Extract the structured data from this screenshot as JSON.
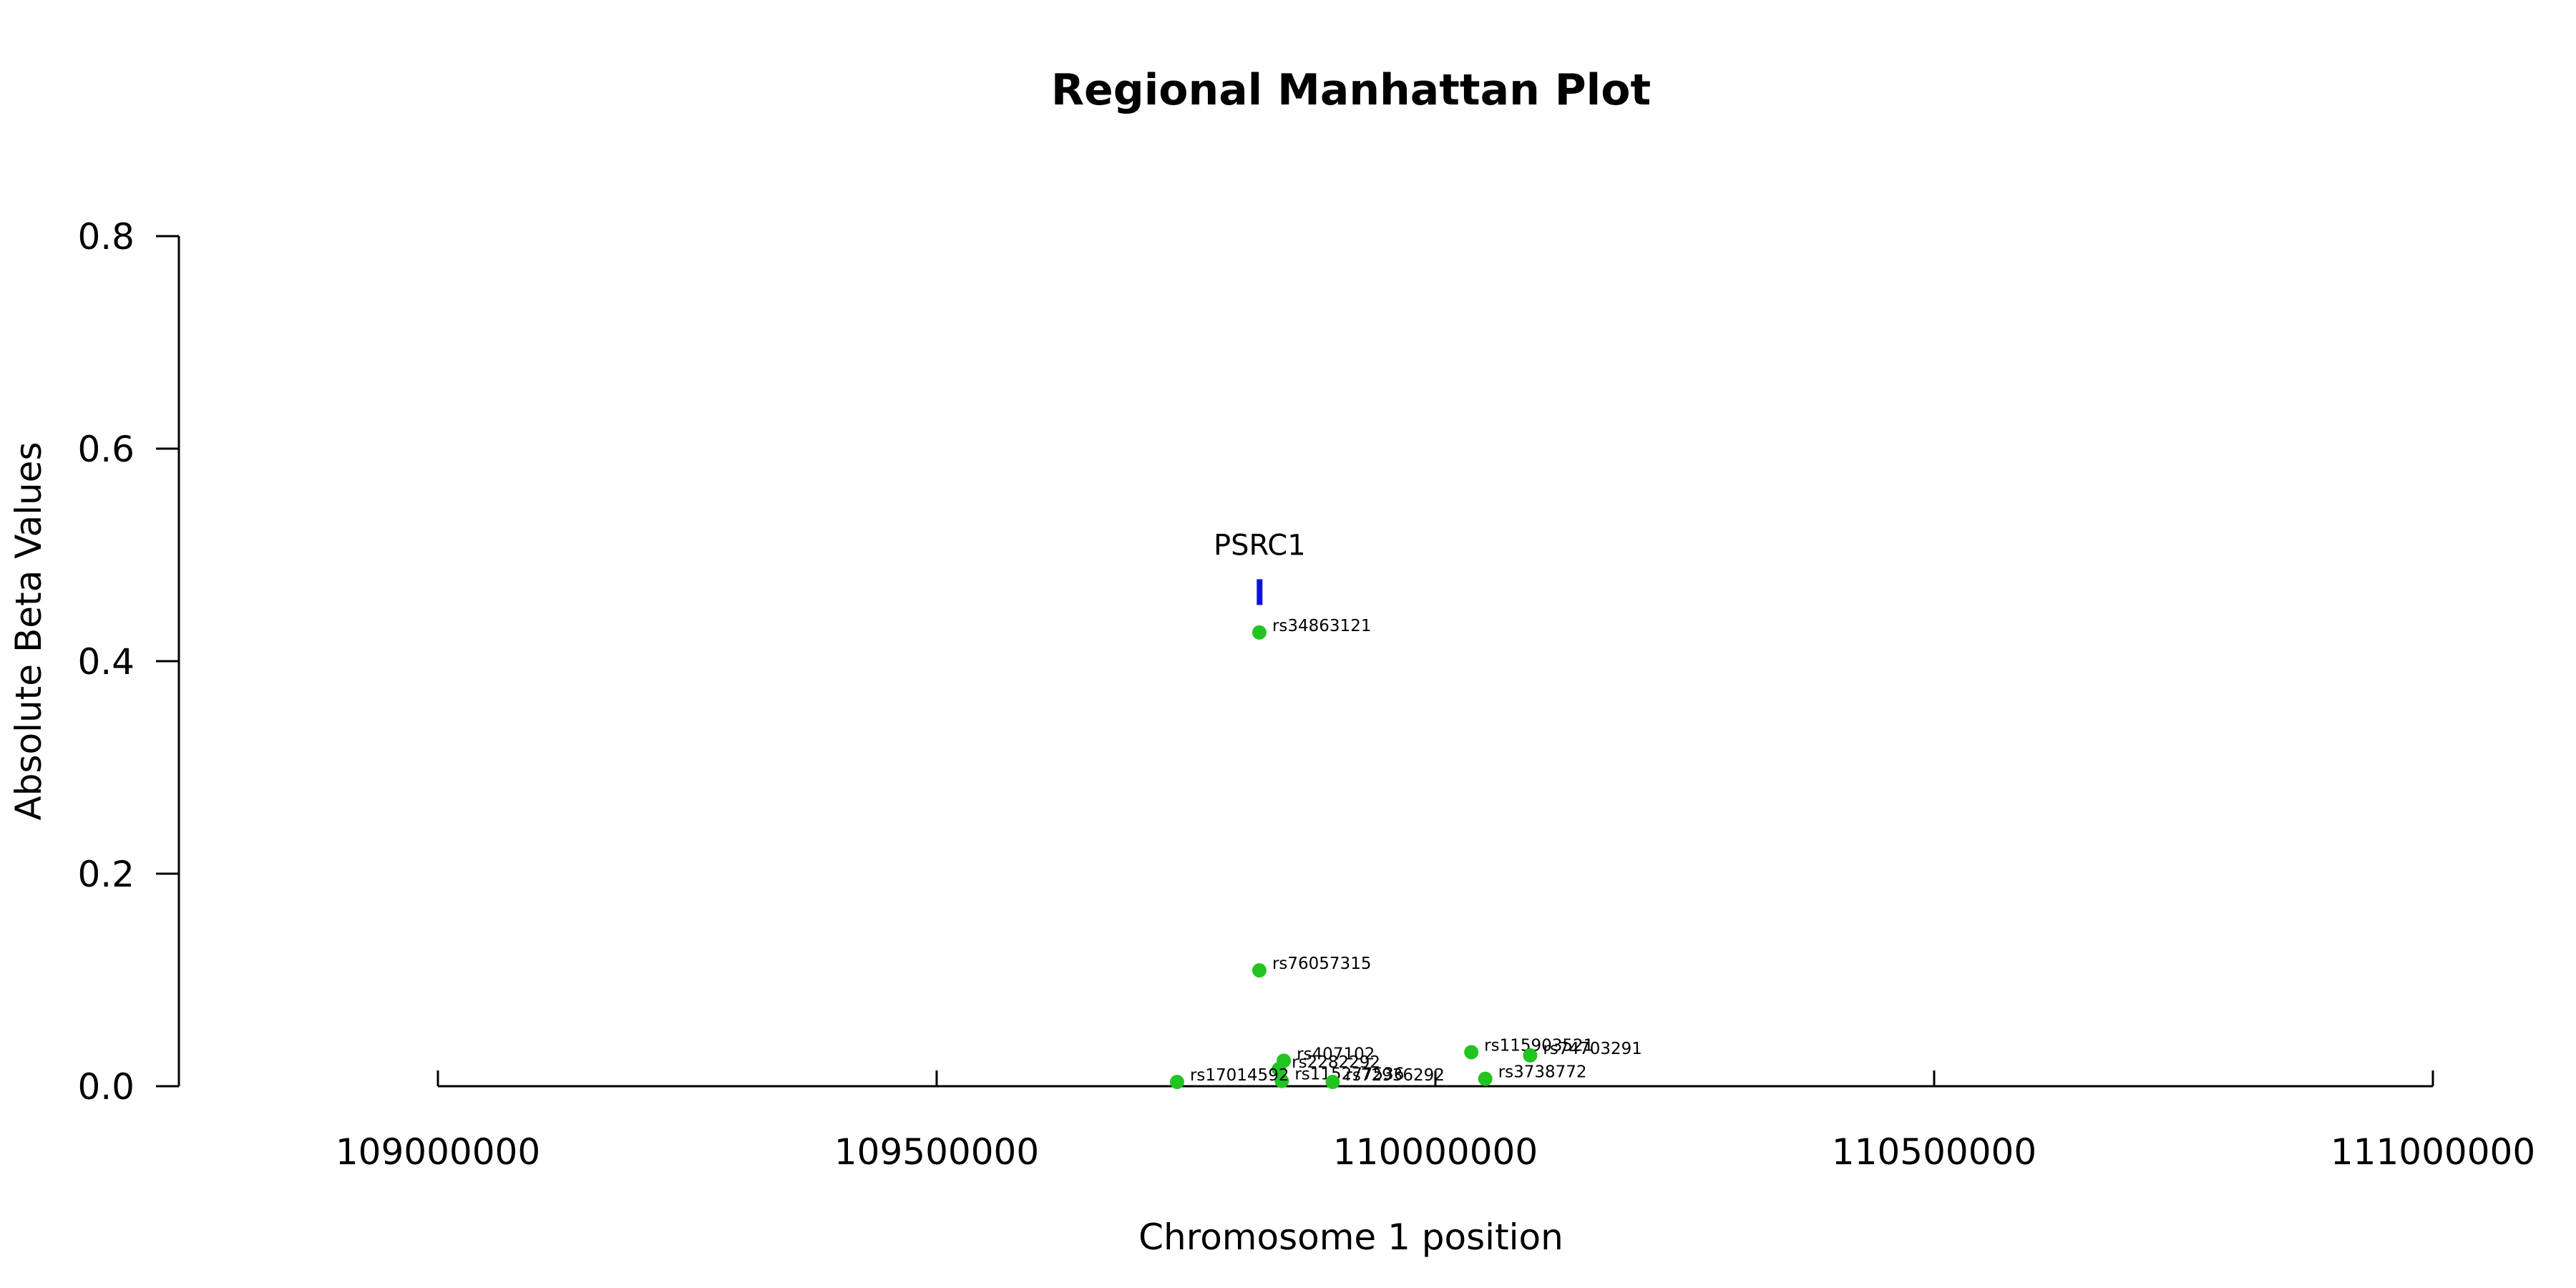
{
  "chart_data": {
    "type": "scatter",
    "title": "Regional Manhattan Plot",
    "xlabel": "Chromosome 1 position",
    "ylabel": "Absolute Beta Values",
    "xlim": [
      109000000,
      111000000
    ],
    "ylim": [
      0,
      0.8
    ],
    "x_ticks": [
      109000000,
      109500000,
      110000000,
      110500000,
      111000000
    ],
    "y_ticks": [
      0.0,
      0.2,
      0.4,
      0.6,
      0.8
    ],
    "x_tick_labels": [
      "109000000",
      "109500000",
      "110000000",
      "110500000",
      "111000000"
    ],
    "y_tick_labels": [
      "0.0",
      "0.2",
      "0.4",
      "0.6",
      "0.8"
    ],
    "point_color": "#22c422",
    "gene_color": "#1010e0",
    "genes": [
      {
        "name": "PSRC1",
        "start": 109822000,
        "end": 109825500,
        "y": 0.465
      }
    ],
    "points": [
      {
        "label": "rs34863121",
        "x": 109823500,
        "y": 0.427
      },
      {
        "label": "rs76057315",
        "x": 109823500,
        "y": 0.109
      },
      {
        "label": "rs407102",
        "x": 109848000,
        "y": 0.024
      },
      {
        "label": "rs2282292",
        "x": 109843000,
        "y": 0.016
      },
      {
        "label": "rs115277536",
        "x": 109846000,
        "y": 0.005
      },
      {
        "label": "rs17014592",
        "x": 109741000,
        "y": 0.004
      },
      {
        "label": "rs72936292",
        "x": 109897000,
        "y": 0.004
      },
      {
        "label": "rs115903521",
        "x": 110036000,
        "y": 0.032
      },
      {
        "label": "rs74703291",
        "x": 110095000,
        "y": 0.029
      },
      {
        "label": "rs3738772",
        "x": 110050000,
        "y": 0.007
      }
    ]
  }
}
